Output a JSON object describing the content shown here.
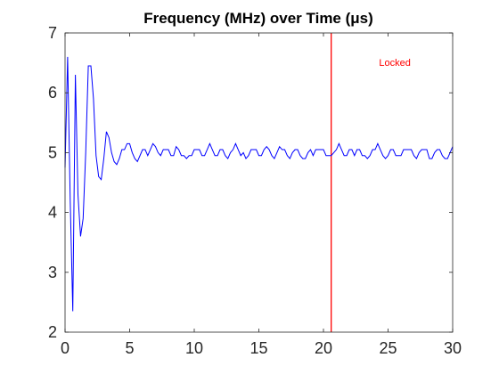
{
  "chart_data": {
    "type": "line",
    "title": "Frequency (MHz) over Time (μs)",
    "xlabel": "",
    "ylabel": "",
    "xlim": [
      0,
      30
    ],
    "ylim": [
      2,
      7
    ],
    "xticks": [
      0,
      5,
      10,
      15,
      20,
      25,
      30
    ],
    "yticks": [
      2,
      3,
      4,
      5,
      6,
      7
    ],
    "xtick_labels": [
      "0",
      "5",
      "10",
      "15",
      "20",
      "25",
      "30"
    ],
    "ytick_labels": [
      "2",
      "3",
      "4",
      "5",
      "6",
      "7"
    ],
    "grid": false,
    "series": [
      {
        "color": "#0000ff",
        "x": [
          0,
          0.2,
          0.4,
          0.6,
          0.8,
          1.0,
          1.2,
          1.4,
          1.6,
          1.8,
          2.0,
          2.2,
          2.4,
          2.6,
          2.8,
          3.0,
          3.2,
          3.4,
          3.6,
          3.8,
          4.0,
          4.2,
          4.4,
          4.6,
          4.8,
          5.0,
          5.2,
          5.4,
          5.6,
          5.8,
          6.0,
          6.2,
          6.4,
          6.6,
          6.8,
          7.0,
          7.2,
          7.4,
          7.6,
          7.8,
          8.0,
          8.2,
          8.4,
          8.6,
          8.8,
          9.0,
          9.2,
          9.4,
          9.6,
          9.8,
          10.0,
          10.2,
          10.4,
          10.6,
          10.8,
          11.0,
          11.2,
          11.4,
          11.6,
          11.8,
          12.0,
          12.2,
          12.4,
          12.6,
          12.8,
          13.0,
          13.2,
          13.4,
          13.6,
          13.8,
          14.0,
          14.2,
          14.4,
          14.6,
          14.8,
          15.0,
          15.2,
          15.4,
          15.6,
          15.8,
          16.0,
          16.2,
          16.4,
          16.6,
          16.8,
          17.0,
          17.2,
          17.4,
          17.6,
          17.8,
          18.0,
          18.2,
          18.4,
          18.6,
          18.8,
          19.0,
          19.2,
          19.4,
          19.6,
          19.8,
          20.0,
          20.2,
          20.4,
          20.6,
          20.8,
          21.0,
          21.2,
          21.4,
          21.6,
          21.8,
          22.0,
          22.2,
          22.4,
          22.6,
          22.8,
          23.0,
          23.2,
          23.4,
          23.6,
          23.8,
          24.0,
          24.2,
          24.4,
          24.6,
          24.8,
          25.0,
          25.2,
          25.4,
          25.6,
          25.8,
          26.0,
          26.2,
          26.4,
          26.6,
          26.8,
          27.0,
          27.2,
          27.4,
          27.6,
          27.8,
          28.0,
          28.2,
          28.4,
          28.6,
          28.8,
          29.0,
          29.2,
          29.4,
          29.6,
          29.8,
          30.0
        ],
        "y": [
          4.75,
          6.6,
          4.2,
          2.35,
          6.3,
          4.3,
          3.6,
          3.9,
          5.0,
          6.45,
          6.45,
          5.9,
          4.95,
          4.6,
          4.55,
          4.9,
          5.35,
          5.25,
          5.0,
          4.85,
          4.8,
          4.9,
          5.05,
          5.05,
          5.15,
          5.15,
          5.0,
          4.9,
          4.85,
          4.95,
          5.05,
          5.05,
          4.95,
          5.05,
          5.15,
          5.1,
          5.0,
          4.95,
          5.05,
          5.05,
          5.05,
          4.95,
          4.95,
          5.1,
          5.05,
          4.95,
          4.95,
          4.9,
          4.95,
          4.95,
          5.05,
          5.05,
          5.05,
          4.95,
          4.95,
          5.05,
          5.15,
          5.05,
          4.95,
          4.95,
          5.05,
          5.05,
          4.95,
          4.9,
          5.0,
          5.05,
          5.15,
          5.05,
          4.95,
          5.0,
          4.9,
          4.95,
          5.05,
          5.05,
          5.05,
          4.95,
          4.95,
          5.05,
          5.1,
          5.05,
          4.95,
          4.9,
          5.0,
          5.1,
          5.05,
          5.05,
          4.95,
          4.9,
          5.0,
          5.05,
          5.05,
          4.95,
          4.9,
          4.9,
          5.0,
          5.05,
          4.95,
          5.05,
          5.05,
          5.05,
          5.05,
          4.95,
          4.95,
          4.95,
          5.0,
          5.05,
          5.15,
          5.05,
          4.95,
          4.95,
          5.05,
          5.05,
          4.95,
          5.05,
          5.05,
          4.95,
          4.95,
          4.9,
          4.95,
          5.05,
          5.05,
          5.15,
          5.05,
          4.95,
          4.9,
          4.95,
          5.05,
          5.05,
          4.95,
          4.95,
          4.95,
          5.05,
          5.05,
          5.05,
          5.05,
          4.95,
          4.9,
          5.0,
          5.05,
          5.05,
          5.05,
          4.9,
          4.9,
          5.0,
          5.05,
          5.05,
          4.95,
          4.9,
          4.9,
          5.0,
          5.1
        ]
      }
    ],
    "vline": {
      "x": 20.6,
      "color": "#ff0000"
    },
    "annotations": [
      {
        "text": "Locked",
        "x": 24.3,
        "y": 6.45,
        "color": "#ff0000"
      }
    ]
  }
}
